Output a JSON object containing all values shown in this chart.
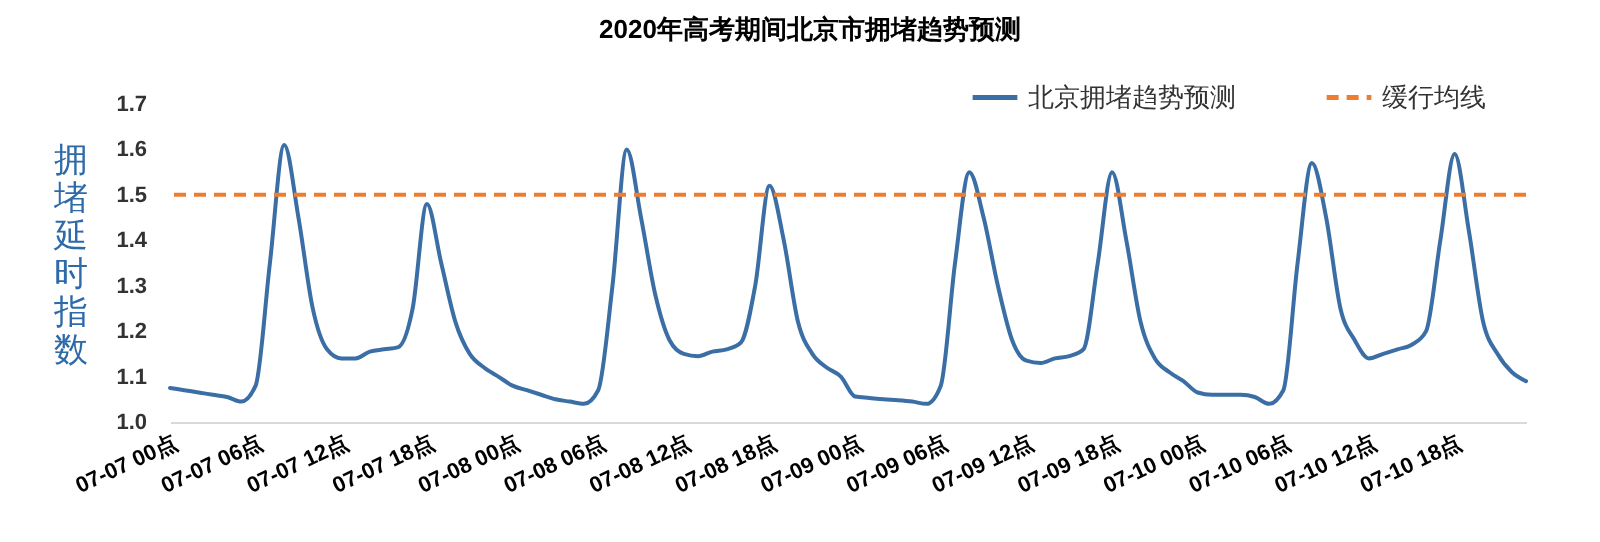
{
  "chart_data": {
    "type": "line",
    "title": "2020年高考期间北京市拥堵趋势预测",
    "ylabel": "拥堵延时指数",
    "categories": [
      "07-07 00点",
      null,
      null,
      null,
      null,
      null,
      "07-07 06点",
      null,
      null,
      null,
      null,
      null,
      "07-07 12点",
      null,
      null,
      null,
      null,
      null,
      "07-07 18点",
      null,
      null,
      null,
      null,
      null,
      "07-08 00点",
      null,
      null,
      null,
      null,
      null,
      "07-08 06点",
      null,
      null,
      null,
      null,
      null,
      "07-08 12点",
      null,
      null,
      null,
      null,
      null,
      "07-08 18点",
      null,
      null,
      null,
      null,
      null,
      "07-09 00点",
      null,
      null,
      null,
      null,
      null,
      "07-09 06点",
      null,
      null,
      null,
      null,
      null,
      "07-09 12点",
      null,
      null,
      null,
      null,
      null,
      "07-09 18点",
      null,
      null,
      null,
      null,
      null,
      "07-10 00点",
      null,
      null,
      null,
      null,
      null,
      "07-10 06点",
      null,
      null,
      null,
      null,
      null,
      "07-10 12点",
      null,
      null,
      null,
      null,
      null,
      "07-10 18点",
      null,
      null,
      null,
      null,
      null
    ],
    "series": [
      {
        "name": "北京拥堵趋势预测",
        "color": "#3a6ea5",
        "values": [
          1.075,
          1.07,
          1.065,
          1.06,
          1.055,
          1.045,
          1.08,
          1.35,
          1.61,
          1.45,
          1.25,
          1.16,
          1.14,
          1.14,
          1.155,
          1.16,
          1.165,
          1.25,
          1.48,
          1.35,
          1.22,
          1.15,
          1.12,
          1.1,
          1.08,
          1.07,
          1.06,
          1.05,
          1.045,
          1.04,
          1.07,
          1.3,
          1.6,
          1.45,
          1.28,
          1.18,
          1.15,
          1.145,
          1.155,
          1.16,
          1.175,
          1.3,
          1.52,
          1.4,
          1.22,
          1.15,
          1.12,
          1.1,
          1.056,
          1.053,
          1.05,
          1.048,
          1.045,
          1.04,
          1.08,
          1.35,
          1.55,
          1.45,
          1.3,
          1.18,
          1.135,
          1.13,
          1.14,
          1.145,
          1.16,
          1.35,
          1.55,
          1.4,
          1.22,
          1.14,
          1.11,
          1.09,
          1.065,
          1.06,
          1.06,
          1.06,
          1.055,
          1.04,
          1.07,
          1.35,
          1.57,
          1.45,
          1.25,
          1.18,
          1.14,
          1.15,
          1.16,
          1.17,
          1.2,
          1.4,
          1.59,
          1.42,
          1.22,
          1.15,
          1.11,
          1.09
        ]
      }
    ],
    "ylim": [
      1.0,
      1.7
    ],
    "yticks": [
      {
        "value": 1.0,
        "label": "1.0"
      },
      {
        "value": 1.1,
        "label": "1.1"
      },
      {
        "value": 1.2,
        "label": "1.2"
      },
      {
        "value": 1.3,
        "label": "1.3"
      },
      {
        "value": 1.4,
        "label": "1.4"
      },
      {
        "value": 1.5,
        "label": "1.5"
      },
      {
        "value": 1.6,
        "label": "1.6"
      },
      {
        "value": 1.7,
        "label": "1.7"
      }
    ],
    "ref_lines": [
      {
        "axis": "y",
        "value": 1.5,
        "label": "缓行均线",
        "color": "#ed7d31",
        "line_style": "dashed"
      }
    ],
    "legend": "top right",
    "grid": false,
    "line_style": "solid",
    "marker": "none"
  }
}
